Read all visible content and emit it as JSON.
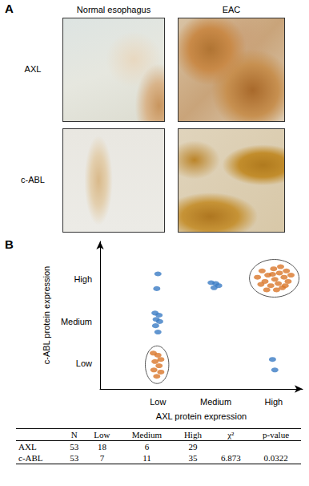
{
  "panel_a": {
    "label": "A",
    "columns": [
      "Normal esophagus",
      "EAC"
    ],
    "rows": [
      "AXL",
      "c-ABL"
    ]
  },
  "panel_b": {
    "label": "B"
  },
  "chart_data": {
    "type": "scatter",
    "x_label": "AXL protein expression",
    "y_label": "c-ABL protein expression",
    "xlim": [
      0,
      3.5
    ],
    "ylim": [
      0.4,
      3.9
    ],
    "xticks": [
      {
        "value": 1,
        "label": "Low"
      },
      {
        "value": 2,
        "label": "Medium"
      },
      {
        "value": 3,
        "label": "High"
      }
    ],
    "yticks": [
      {
        "value": 1,
        "label": "Low"
      },
      {
        "value": 2,
        "label": "Medium"
      },
      {
        "value": 3,
        "label": "High"
      }
    ],
    "grid": false,
    "marker": "circle",
    "series": [
      {
        "color": "#3b7cc4",
        "x": [
          1.0,
          0.98,
          0.95,
          1.02,
          0.97,
          1.03,
          0.96,
          1.0,
          1.92,
          2.0,
          2.05,
          1.97,
          2.98,
          3.02
        ],
        "y": [
          3.13,
          2.78,
          2.2,
          2.15,
          2.05,
          2.0,
          1.9,
          1.75,
          2.92,
          2.9,
          2.85,
          2.8,
          1.1,
          0.85
        ]
      },
      {
        "color": "#d9772b",
        "x": [
          0.92,
          1.0,
          1.05,
          0.95,
          1.02,
          0.93,
          1.05,
          0.98
        ],
        "y": [
          1.25,
          1.2,
          1.1,
          1.05,
          0.95,
          0.85,
          0.8,
          0.7
        ]
      },
      {
        "color": "#d9772b",
        "x": [
          2.72,
          2.8,
          2.85,
          2.9,
          2.95,
          3.0,
          3.02,
          3.08,
          3.1,
          3.15,
          3.18,
          3.22,
          3.25,
          3.3,
          2.88,
          3.05,
          2.98,
          3.12,
          2.78,
          3.2
        ],
        "y": [
          3.05,
          3.2,
          2.95,
          3.1,
          2.85,
          3.25,
          3.0,
          2.9,
          3.15,
          2.8,
          3.05,
          3.2,
          2.95,
          3.1,
          2.75,
          2.75,
          3.12,
          3.3,
          2.88,
          2.85
        ]
      }
    ]
  },
  "table": {
    "columns": [
      "N",
      "Low",
      "Medium",
      "High",
      "χ²",
      "p-value"
    ],
    "rows": [
      {
        "label": "AXL",
        "cells": [
          53,
          18,
          6,
          29,
          null,
          null
        ]
      },
      {
        "label": "c-ABL",
        "cells": [
          53,
          7,
          11,
          35,
          6.873,
          0.0322
        ]
      }
    ]
  }
}
